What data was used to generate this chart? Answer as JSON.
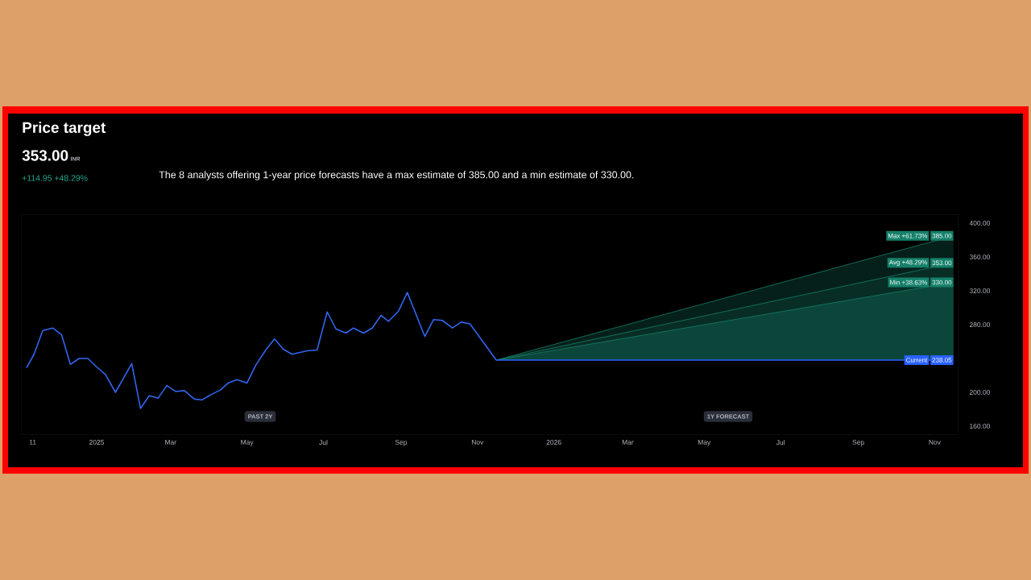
{
  "chart_data": {
    "type": "line",
    "title": "Price target",
    "subtitle": "353.00",
    "annotations": [
      "INR",
      "+114.95  +48.29%",
      "The 8 analysts offering 1-year price forecasts have a max estimate of 385.00 and a min estimate of 330.00.",
      "PAST 2Y",
      "1Y FORECAST"
    ],
    "x": [
      "2024-11-06",
      "2024-11-12",
      "2024-11-19",
      "2024-11-27",
      "2024-12-04",
      "2024-12-11",
      "2024-12-18",
      "2024-12-25",
      "2025-01-01",
      "2025-01-08",
      "2025-01-16",
      "2025-01-29",
      "2025-02-05",
      "2025-02-12",
      "2025-02-19",
      "2025-02-26",
      "2025-03-05",
      "2025-03-12",
      "2025-03-20",
      "2025-03-26",
      "2025-04-02",
      "2025-04-10",
      "2025-04-16",
      "2025-04-23",
      "2025-05-01",
      "2025-05-08",
      "2025-05-16",
      "2025-05-23",
      "2025-05-30",
      "2025-06-06",
      "2025-06-18",
      "2025-06-26",
      "2025-07-04",
      "2025-07-11",
      "2025-07-19",
      "2025-07-25",
      "2025-08-02",
      "2025-08-09",
      "2025-08-16",
      "2025-08-22",
      "2025-08-30",
      "2025-09-06",
      "2025-09-20",
      "2025-09-27",
      "2025-10-04",
      "2025-10-12",
      "2025-10-19",
      "2025-10-26",
      "2025-11-16"
    ],
    "series": [
      {
        "color": "#3366ee",
        "values": [
          229,
          245,
          273,
          276,
          268,
          233,
          240,
          240,
          230,
          221,
          200,
          234,
          181,
          196,
          193,
          208,
          201,
          202,
          192,
          191,
          197,
          203,
          211,
          215,
          211,
          232,
          250,
          263,
          251,
          245,
          249,
          250,
          295,
          275,
          270,
          276,
          270,
          276,
          291,
          284,
          296,
          318,
          266,
          286,
          285,
          276,
          283,
          281,
          238.05
        ]
      },
      {
        "type": "area",
        "name": "Max +61.73%",
        "color": "#15806a",
        "x": [
          "2025-11-16",
          "2026-11-16"
        ],
        "values": [
          238.05,
          385
        ],
        "value_labels": [
          null,
          "385.00"
        ]
      },
      {
        "type": "area",
        "name": "Avg +48.29%",
        "color": "#15806a",
        "x": [
          "2025-11-16",
          "2026-11-16"
        ],
        "values": [
          238.05,
          353
        ],
        "value_labels": [
          null,
          "353.00"
        ]
      },
      {
        "type": "area",
        "name": "Min +38.63%",
        "color": "#15806a",
        "x": [
          "2025-11-16",
          "2026-11-16"
        ],
        "values": [
          238.05,
          330
        ],
        "value_labels": [
          null,
          "330.00"
        ]
      },
      {
        "type": "line",
        "name": "Current",
        "color": "#2962ff",
        "x": [
          "2025-11-16",
          "2026-11-16"
        ],
        "values": [
          238.05,
          238.05
        ],
        "value_labels": [
          null,
          "238.05"
        ]
      }
    ],
    "xlim": [
      "2024-11-02",
      "2026-11-20"
    ],
    "ylim": [
      150,
      410
    ],
    "legend": "right",
    "xticks": [
      {
        "value": "2024-11-11",
        "label": "11"
      },
      {
        "value": "2025-01-01",
        "label": "2025"
      },
      {
        "value": "2025-03-01",
        "label": "Mar"
      },
      {
        "value": "2025-05-01",
        "label": "May"
      },
      {
        "value": "2025-07-01",
        "label": "Jul"
      },
      {
        "value": "2025-09-01",
        "label": "Sep"
      },
      {
        "value": "2025-11-01",
        "label": "Nov"
      },
      {
        "value": "2026-01-01",
        "label": "2026"
      },
      {
        "value": "2026-03-01",
        "label": "Mar"
      },
      {
        "value": "2026-05-01",
        "label": "May"
      },
      {
        "value": "2026-07-01",
        "label": "Jul"
      },
      {
        "value": "2026-09-01",
        "label": "Sep"
      },
      {
        "value": "2026-11-01",
        "label": "Nov"
      }
    ],
    "yticks": [
      {
        "value": 160,
        "label": "160.00"
      },
      {
        "value": 200,
        "label": "200.00"
      },
      {
        "value": 280,
        "label": "280.00"
      },
      {
        "value": 320,
        "label": "320.00"
      },
      {
        "value": 360,
        "label": "360.00"
      },
      {
        "value": 400,
        "label": "400.00"
      }
    ]
  }
}
